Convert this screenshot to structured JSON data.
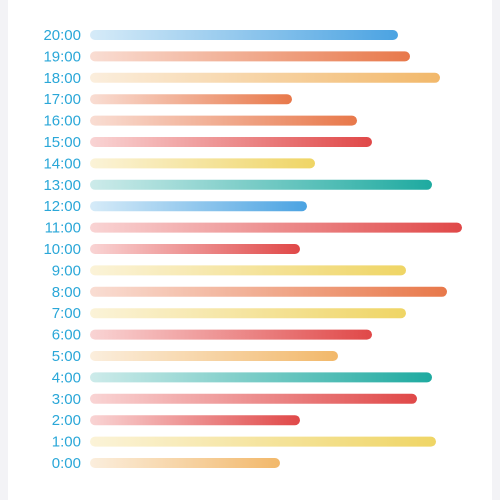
{
  "chart_data": {
    "type": "bar",
    "orientation": "horizontal",
    "title": "",
    "xlabel": "",
    "ylabel": "",
    "grid": false,
    "legend": "none",
    "categories": [
      "0:00",
      "1:00",
      "2:00",
      "3:00",
      "4:00",
      "5:00",
      "6:00",
      "7:00",
      "8:00",
      "9:00",
      "10:00",
      "11:00",
      "12:00",
      "13:00",
      "14:00",
      "15:00",
      "16:00",
      "17:00",
      "18:00",
      "19:00",
      "20:00"
    ],
    "values": [
      190,
      346,
      210,
      327,
      342,
      248,
      282,
      316,
      357,
      316,
      210,
      372,
      217,
      342,
      225,
      282,
      267,
      202,
      350,
      320,
      308
    ],
    "xlim": [
      0,
      380
    ],
    "bar_colors": [
      "orange",
      "yellow",
      "red",
      "red",
      "teal",
      "orange",
      "red",
      "yellow",
      "coral",
      "yellow",
      "red",
      "red",
      "blue",
      "teal",
      "yellow",
      "red",
      "coral",
      "coral",
      "orange",
      "coral",
      "blue"
    ]
  },
  "theme": {
    "label_color": "#2aa7d8",
    "palette": {
      "orange": [
        "#fbeedd",
        "#f2b86a"
      ],
      "yellow": [
        "#fbf3d8",
        "#efd565"
      ],
      "red": [
        "#f9d4d4",
        "#e04848"
      ],
      "coral": [
        "#f9ddd3",
        "#e8784a"
      ],
      "teal": [
        "#cdebea",
        "#1eaaa0"
      ],
      "blue": [
        "#d6ebf8",
        "#4ba3e2"
      ]
    }
  }
}
